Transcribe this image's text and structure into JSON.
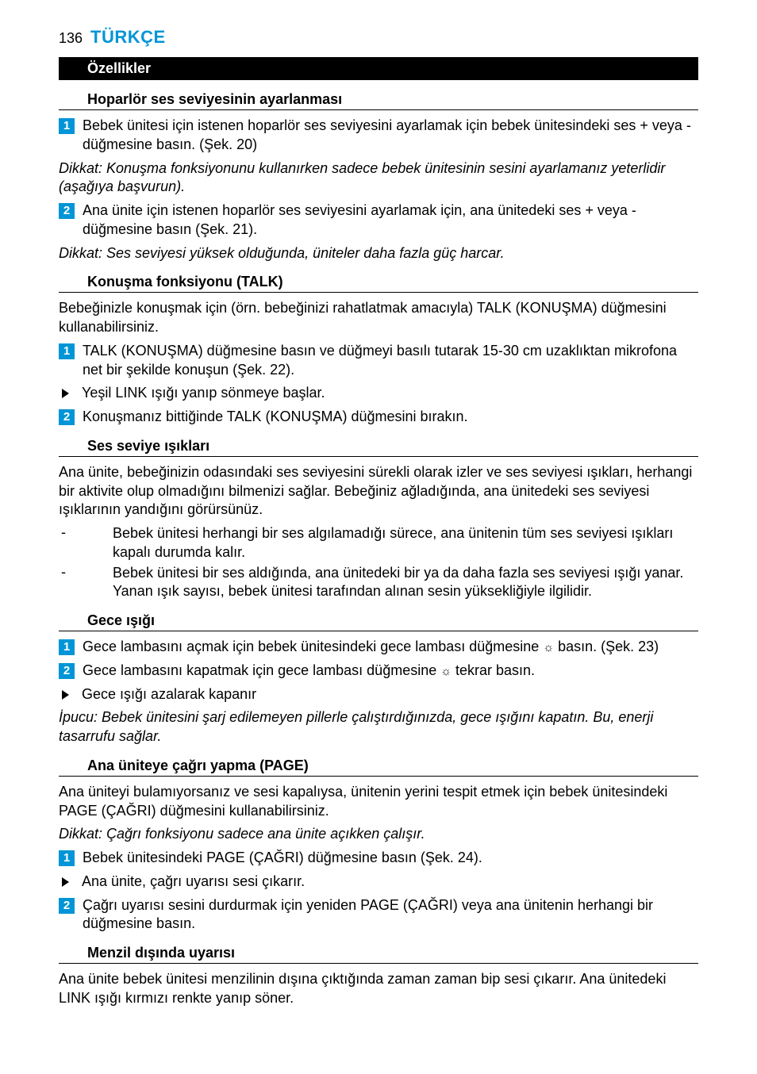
{
  "page_number": "136",
  "language": "TÜRKÇE",
  "accent_color": "#0095d6",
  "step_num_bg": "#0095d6",
  "sections": {
    "features_title": "Özellikler",
    "speaker": {
      "heading": "Hoparlör ses seviyesinin ayarlanması",
      "step1": "Bebek ünitesi için istenen hoparlör ses seviyesini ayarlamak için bebek ünitesindeki ses + veya - düğmesine basın.  (Şek. 20)",
      "note1": "Dikkat: Konuşma fonksiyonunu kullanırken sadece bebek ünitesinin sesini ayarlamanız yeterlidir (aşağıya başvurun).",
      "step2": "Ana ünite için istenen hoparlör ses seviyesini ayarlamak için, ana ünitedeki ses + veya - düğmesine basın (Şek. 21).",
      "note2": "Dikkat: Ses seviyesi yüksek olduğunda, üniteler daha fazla güç harcar."
    },
    "talk": {
      "heading": "Konuşma fonksiyonu (TALK)",
      "intro": "Bebeğinizle konuşmak için (örn. bebeğinizi rahatlatmak amacıyla) TALK (KONUŞMA) düğmesini kullanabilirsiniz.",
      "step1": "TALK (KONUŞMA) düğmesine basın ve düğmeyi basılı tutarak 15-30 cm uzaklıktan mikrofona net bir şekilde konuşun (Şek. 22).",
      "step1_sub": "Yeşil LINK ışığı yanıp sönmeye başlar.",
      "step2": "Konuşmanız bittiğinde TALK (KONUŞMA) düğmesini bırakın."
    },
    "lights": {
      "heading": "Ses seviye ışıkları",
      "intro": "Ana ünite, bebeğinizin odasındaki ses seviyesini sürekli olarak izler ve ses seviyesi ışıkları, herhangi bir aktivite olup olmadığını bilmenizi sağlar. Bebeğiniz ağladığında, ana ünitedeki ses seviyesi ışıklarının yandığını görürsünüz.",
      "dash1": "Bebek ünitesi herhangi bir ses algılamadığı sürece, ana ünitenin tüm ses seviyesi ışıkları kapalı durumda kalır.",
      "dash2": "Bebek ünitesi bir ses aldığında, ana ünitedeki bir ya da daha fazla ses seviyesi ışığı yanar. Yanan ışık sayısı, bebek ünitesi tarafından alınan sesin yüksekliğiyle ilgilidir."
    },
    "night": {
      "heading": "Gece ışığı",
      "step1_a": "Gece lambasını açmak için bebek ünitesindeki gece lambası düğmesine ",
      "step1_b": " basın.  (Şek. 23)",
      "step2_a": "Gece lambasını kapatmak için gece lambası düğmesine ",
      "step2_b": " tekrar basın.",
      "step2_sub": "Gece ışığı  azalarak kapanır",
      "tip": "İpucu: Bebek ünitesini şarj edilemeyen pillerle çalıştırdığınızda, gece ışığını kapatın. Bu, enerji tasarrufu sağlar."
    },
    "page": {
      "heading": "Ana üniteye çağrı yapma (PAGE)",
      "intro": "Ana üniteyi bulamıyorsanız ve sesi kapalıysa, ünitenin yerini tespit etmek için bebek ünitesindeki PAGE (ÇAĞRI) düğmesini kullanabilirsiniz.",
      "note": "Dikkat: Çağrı fonksiyonu sadece ana ünite açıkken çalışır.",
      "step1": "Bebek ünitesindeki PAGE (ÇAĞRI) düğmesine basın (Şek. 24).",
      "step1_sub": "Ana ünite, çağrı uyarısı sesi çıkarır.",
      "step2": "Çağrı uyarısı sesini durdurmak için yeniden PAGE (ÇAĞRI) veya ana ünitenin herhangi bir düğmesine basın."
    },
    "range": {
      "heading": "Menzil dışında uyarısı",
      "body": "Ana ünite bebek ünitesi menzilinin dışına çıktığında zaman zaman bip sesi çıkarır. Ana ünitedeki LINK ışığı kırmızı renkte yanıp söner."
    }
  },
  "icons": {
    "sun": "☼"
  }
}
